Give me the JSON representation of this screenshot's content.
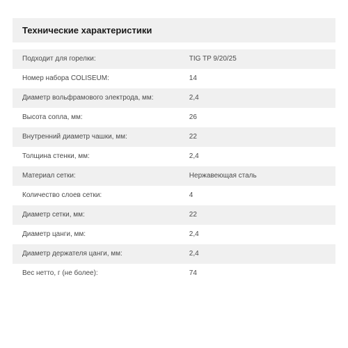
{
  "title": "Технические характеристики",
  "colors": {
    "row_bg_odd": "#f0f0f0",
    "row_bg_even": "#ffffff",
    "text": "#4a4a4a",
    "title_text": "#1a1a1a"
  },
  "typography": {
    "title_fontsize_pt": 10,
    "row_fontsize_pt": 7.5,
    "font_family": "Arial"
  },
  "specs": [
    {
      "label": "Подходит для горелки:",
      "value": "TIG TP 9/20/25"
    },
    {
      "label": "Номер набора COLISEUM:",
      "value": "14"
    },
    {
      "label": "Диаметр вольфрамового электрода, мм:",
      "value": "2,4"
    },
    {
      "label": "Высота сопла, мм:",
      "value": "26"
    },
    {
      "label": "Внутренний диаметр чашки, мм:",
      "value": "22"
    },
    {
      "label": "Толщина стенки, мм:",
      "value": "2,4"
    },
    {
      "label": "Материал сетки:",
      "value": "Нержавеющая сталь"
    },
    {
      "label": "Количество слоев сетки:",
      "value": "4"
    },
    {
      "label": "Диаметр сетки, мм:",
      "value": "22"
    },
    {
      "label": "Диаметр цанги, мм:",
      "value": "2,4"
    },
    {
      "label": "Диаметр держателя цанги, мм:",
      "value": "2,4"
    },
    {
      "label": "Вес нетто, г (не более):",
      "value": "74"
    }
  ]
}
